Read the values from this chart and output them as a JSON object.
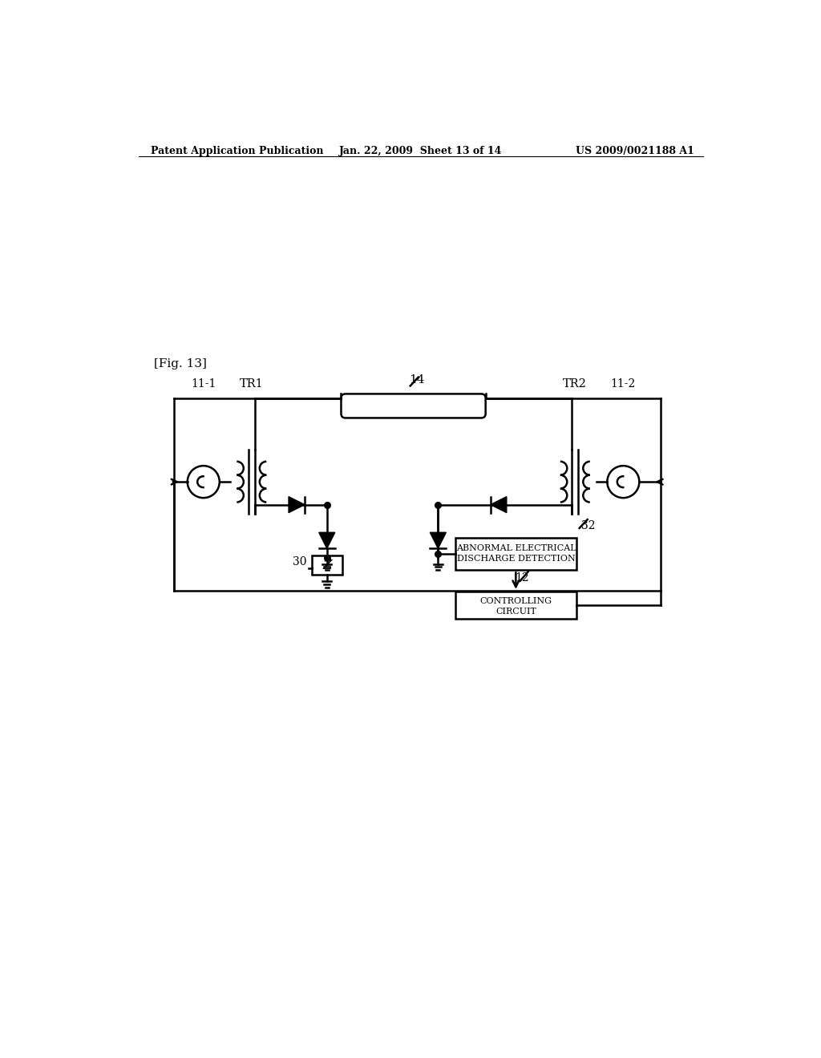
{
  "bg_color": "#ffffff",
  "header_left": "Patent Application Publication",
  "header_mid": "Jan. 22, 2009  Sheet 13 of 14",
  "header_right": "US 2009/0021188 A1",
  "fig_label": "[Fig. 13]",
  "lc": "#000000",
  "lw": 1.8,
  "box_abnormal": [
    "ABNORMAL ELECTRICAL",
    "DISCHARGE DETECTION"
  ],
  "box_ctrl": [
    "CONTROLLING",
    "CIRCUIT"
  ]
}
